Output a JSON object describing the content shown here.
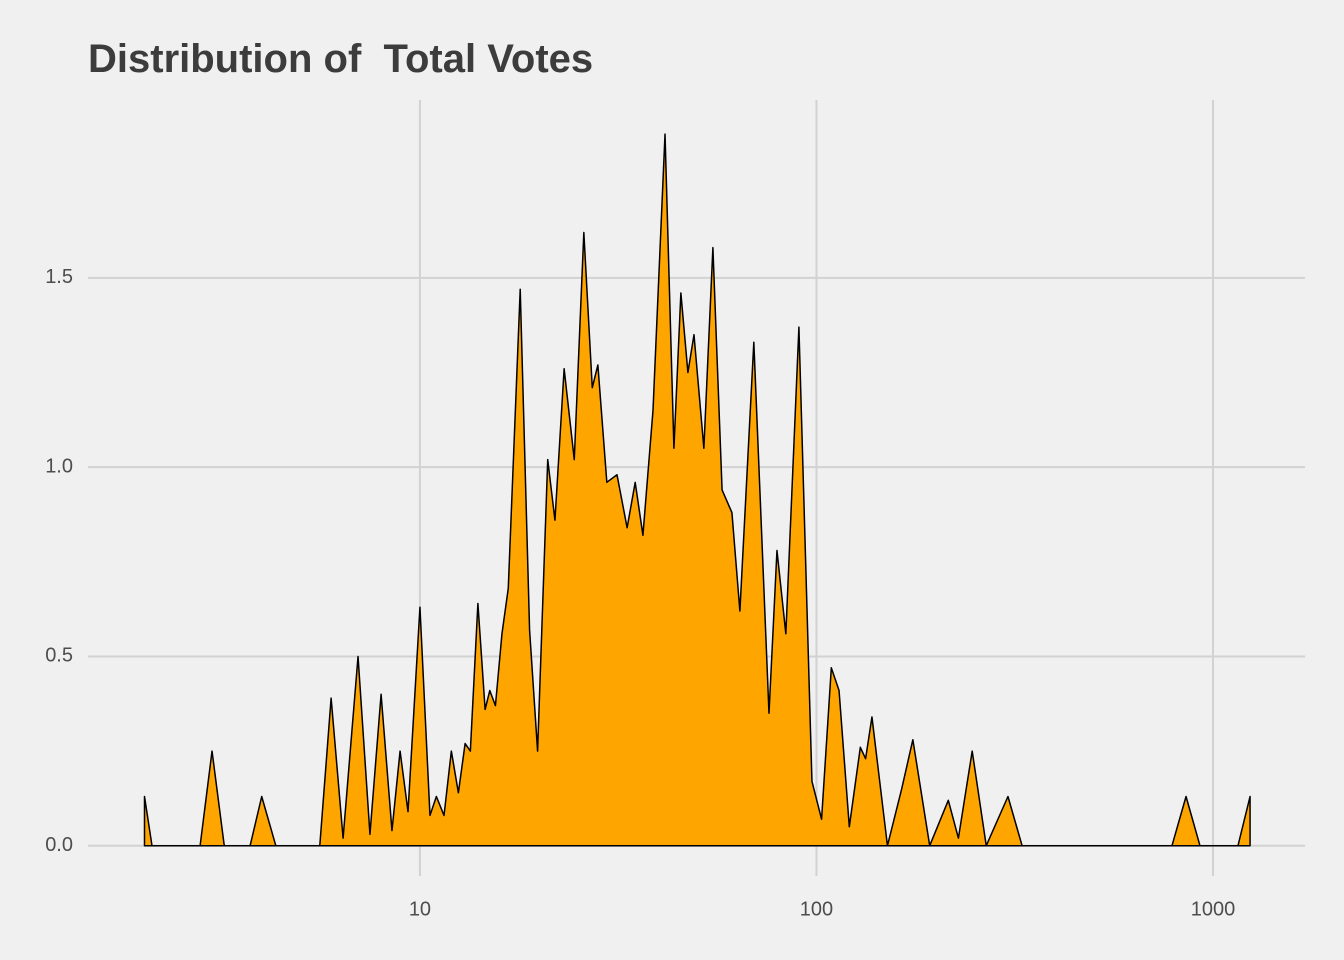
{
  "chart_data": {
    "type": "area",
    "title": "Distribution of  Total Votes",
    "log_x": true,
    "grid": true,
    "color": "#ffa500",
    "line_color": "#000000",
    "x": [
      2.02,
      2.11,
      2.79,
      2.99,
      3.21,
      3.73,
      3.99,
      4.33,
      5.59,
      5.97,
      6.4,
      6.98,
      7.48,
      7.98,
      8.5,
      8.91,
      9.33,
      10,
      10.6,
      11.0,
      11.5,
      12.0,
      12.5,
      13.0,
      13.4,
      14.0,
      14.6,
      15.0,
      15.5,
      16.1,
      16.7,
      17.9,
      18.9,
      19.8,
      21.0,
      21.9,
      23.1,
      24.5,
      25.9,
      27.2,
      28.1,
      29.6,
      31.4,
      33.3,
      34.9,
      36.5,
      38.7,
      41.5,
      43.7,
      45.5,
      47.4,
      49.1,
      52.0,
      54.8,
      57.8,
      61.2,
      64.1,
      69.5,
      75.9,
      79.5,
      83.7,
      90.3,
      97.4,
      103,
      109,
      114,
      121,
      129,
      133,
      138,
      151,
      164,
      175,
      193,
      215,
      228,
      247,
      268,
      304,
      330,
      788,
      855,
      927,
      1156,
      1240
    ],
    "values": [
      0.13,
      0,
      0,
      0.25,
      0,
      0,
      0.13,
      0,
      0,
      0.39,
      0.02,
      0.5,
      0.03,
      0.4,
      0.04,
      0.25,
      0.09,
      0.63,
      0.08,
      0.13,
      0.08,
      0.25,
      0.14,
      0.27,
      0.25,
      0.64,
      0.36,
      0.41,
      0.37,
      0.56,
      0.68,
      1.47,
      0.57,
      0.25,
      1.02,
      0.86,
      1.26,
      1.02,
      1.62,
      1.21,
      1.27,
      0.96,
      0.98,
      0.84,
      0.96,
      0.82,
      1.15,
      1.88,
      1.05,
      1.46,
      1.25,
      1.35,
      1.05,
      1.58,
      0.94,
      0.88,
      0.62,
      1.33,
      0.35,
      0.78,
      0.56,
      1.37,
      0.17,
      0.07,
      0.47,
      0.41,
      0.05,
      0.26,
      0.23,
      0.34,
      0,
      0.15,
      0.28,
      0,
      0.12,
      0.02,
      0.25,
      0,
      0.13,
      0,
      0,
      0.13,
      0,
      0,
      0.13
    ],
    "xlim": [
      1.455,
      1706
    ],
    "xticks": [
      10,
      100,
      1000
    ],
    "ylim": [
      -0.08,
      1.97
    ],
    "yticks": [
      {
        "value": 0,
        "label": "0.0"
      },
      0.5,
      {
        "value": 1,
        "label": "1.0"
      },
      1.5
    ]
  }
}
